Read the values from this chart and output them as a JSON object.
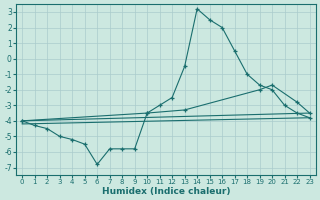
{
  "xlabel": "Humidex (Indice chaleur)",
  "bg_color": "#cce8e0",
  "grid_color": "#aacccc",
  "line_color": "#1a6e6e",
  "xlim": [
    -0.5,
    23.5
  ],
  "ylim": [
    -7.5,
    3.5
  ],
  "yticks": [
    -7,
    -6,
    -5,
    -4,
    -3,
    -2,
    -1,
    0,
    1,
    2,
    3
  ],
  "xticks": [
    0,
    1,
    2,
    3,
    4,
    5,
    6,
    7,
    8,
    9,
    10,
    11,
    12,
    13,
    14,
    15,
    16,
    17,
    18,
    19,
    20,
    21,
    22,
    23
  ],
  "line1_x": [
    0,
    1,
    2,
    3,
    4,
    5,
    6,
    7,
    8,
    9,
    10,
    11,
    12,
    13,
    14,
    15,
    16,
    17,
    18,
    19,
    20,
    21,
    22,
    23
  ],
  "line1_y": [
    -4.0,
    -4.3,
    -4.5,
    -5.0,
    -5.2,
    -5.5,
    -6.8,
    -5.8,
    -5.8,
    -5.8,
    -3.5,
    -3.0,
    -2.5,
    -0.5,
    3.2,
    2.5,
    2.0,
    0.5,
    -1.0,
    -1.7,
    -2.0,
    -3.0,
    -3.5,
    -3.8
  ],
  "line2_x": [
    0,
    10,
    13,
    19,
    20,
    22,
    23
  ],
  "line2_y": [
    -4.0,
    -3.5,
    -3.3,
    -2.0,
    -1.7,
    -2.8,
    -3.5
  ],
  "line3_x": [
    0,
    23
  ],
  "line3_y": [
    -4.0,
    -3.5
  ],
  "line4_x": [
    0,
    23
  ],
  "line4_y": [
    -4.2,
    -3.8
  ]
}
